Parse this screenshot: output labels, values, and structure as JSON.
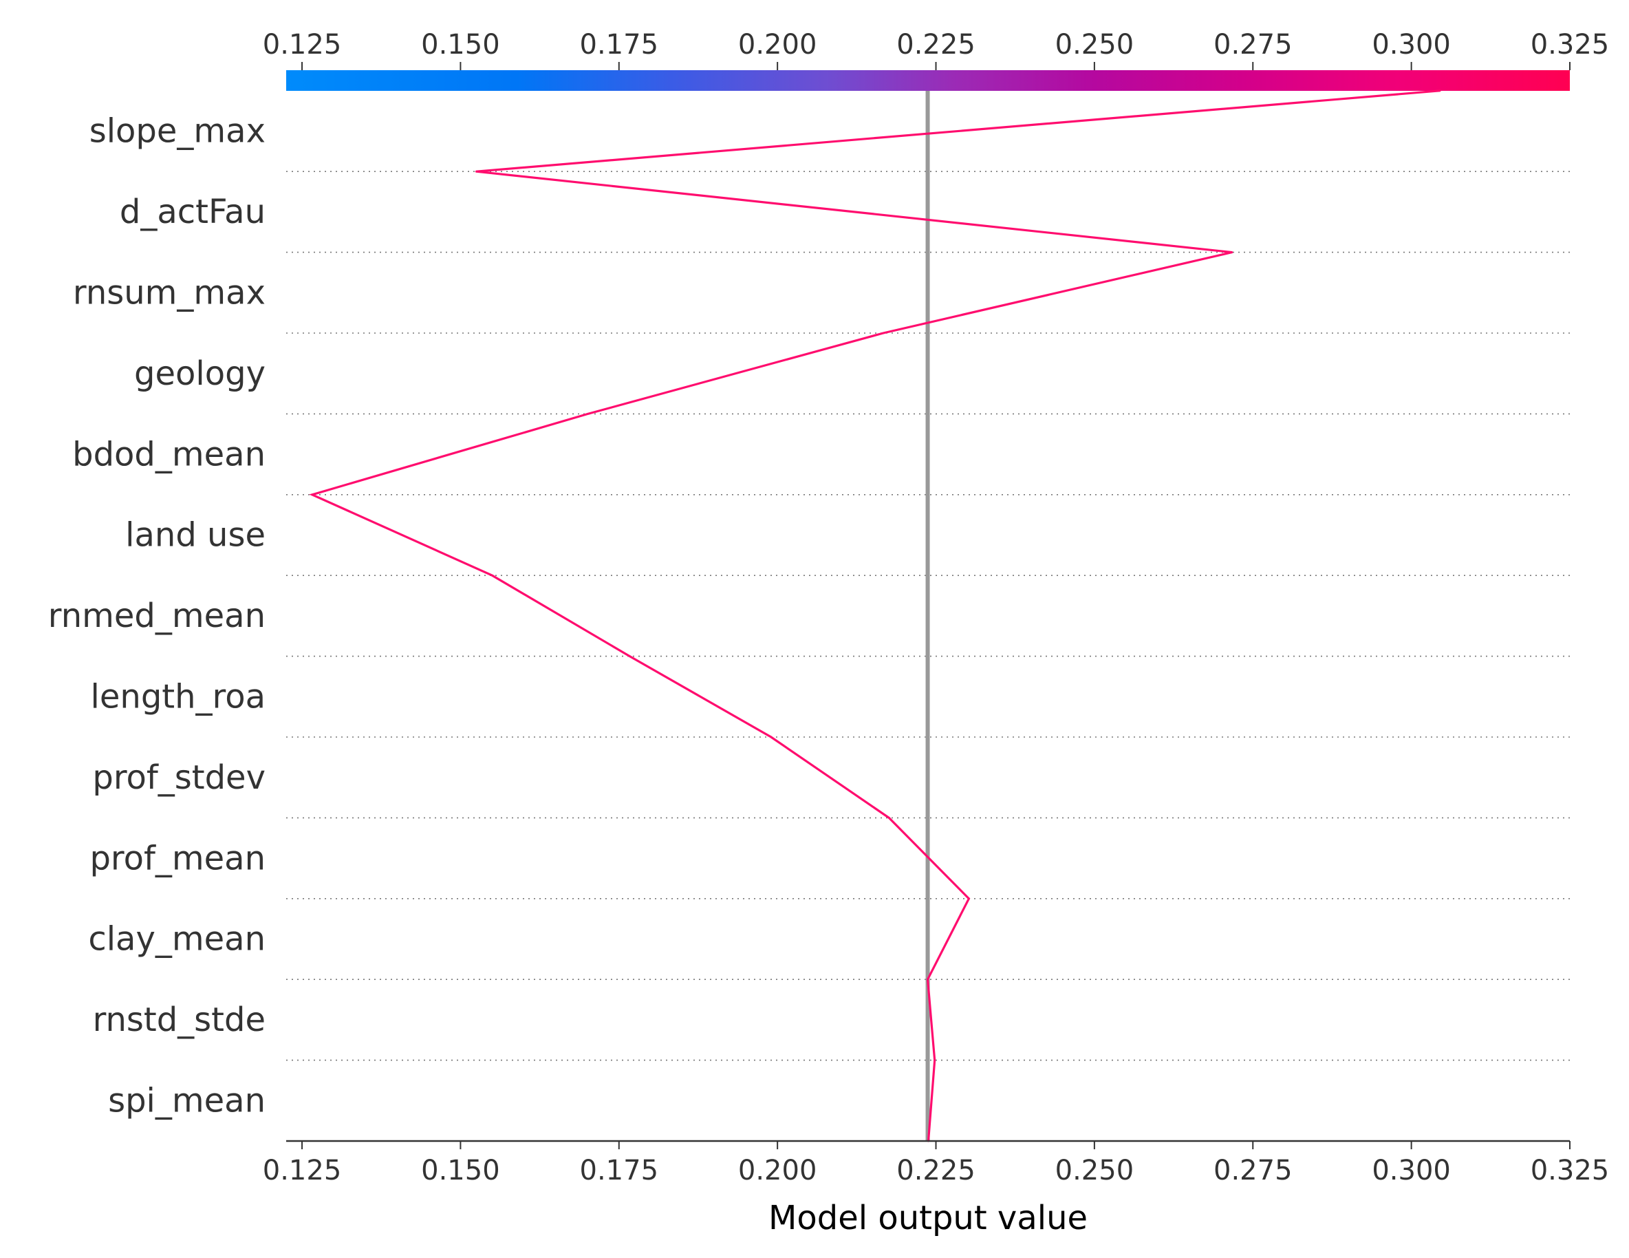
{
  "chart_data": {
    "type": "line",
    "title": "",
    "xlabel": "Model output value",
    "ylabel": "",
    "xlim": [
      0.1225,
      0.325
    ],
    "xticks": [
      "0.125",
      "0.150",
      "0.175",
      "0.200",
      "0.225",
      "0.250",
      "0.275",
      "0.300",
      "0.325"
    ],
    "xtick_values": [
      0.125,
      0.15,
      0.175,
      0.2,
      0.225,
      0.25,
      0.275,
      0.3,
      0.325
    ],
    "base_value": 0.2237,
    "features": [
      "slope_max",
      "d_actFau",
      "rnsum_max",
      "geology",
      "bdod_mean",
      "land use",
      "rnmed_mean",
      "length_roa",
      "prof_stdev",
      "prof_mean",
      "clay_mean",
      "rnstd_stde",
      "spi_mean"
    ],
    "series": [
      {
        "values": [
          0.2238,
          0.2248,
          0.2237,
          0.2302,
          0.2176,
          0.199,
          0.1767,
          0.155,
          0.1266,
          0.1701,
          0.2167,
          0.2717,
          0.1525,
          0.3045
        ]
      }
    ],
    "grid": true,
    "line_color": "#ff0d6e",
    "base_line_color": "#999999",
    "colorbar": {
      "ticks": [
        "0.125",
        "0.150",
        "0.175",
        "0.200",
        "0.225",
        "0.250",
        "0.275",
        "0.300",
        "0.325"
      ],
      "colors": [
        "#008bfb",
        "#0076f6",
        "#3a5ce6",
        "#6e4ed2",
        "#9b2bb6",
        "#b5089f",
        "#d4008a",
        "#f20077",
        "#ff0052"
      ]
    }
  }
}
